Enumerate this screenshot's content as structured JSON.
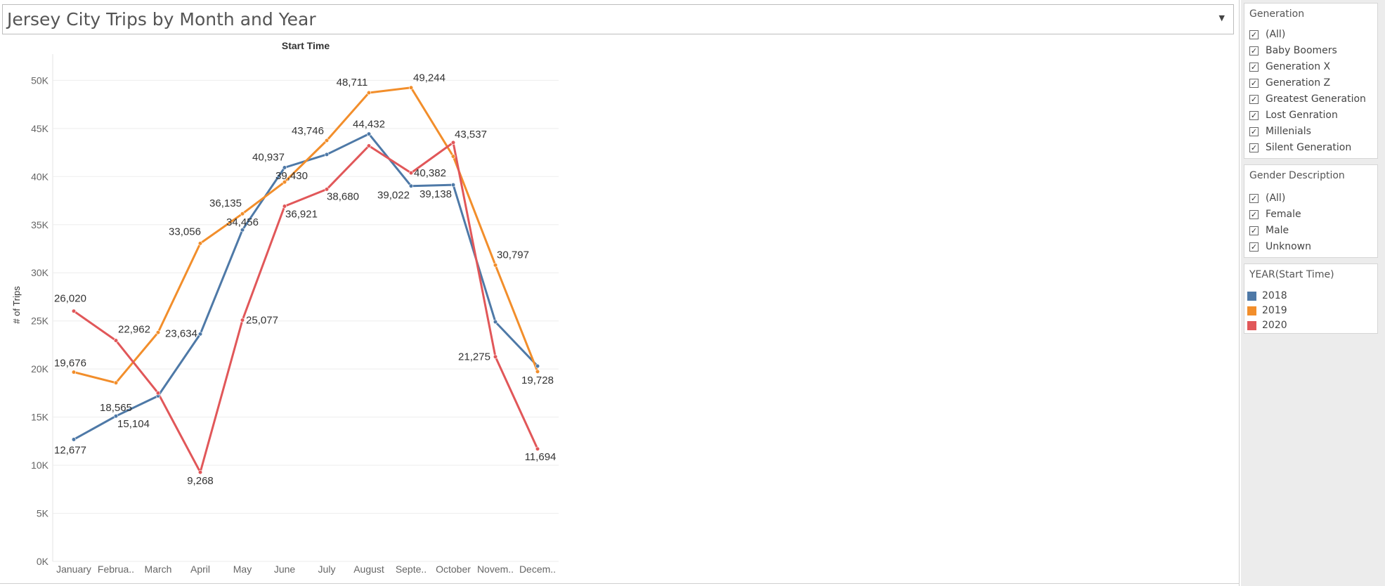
{
  "dashboard": {
    "title": "Jersey City Trips by Month and Year",
    "title_dropdown_icon": "caret-down-icon"
  },
  "filters": {
    "generation": {
      "title": "Generation",
      "items": [
        {
          "label": "(All)",
          "checked": true
        },
        {
          "label": "Baby Boomers",
          "checked": true
        },
        {
          "label": "Generation X",
          "checked": true
        },
        {
          "label": "Generation Z",
          "checked": true
        },
        {
          "label": "Greatest Generation",
          "checked": true
        },
        {
          "label": "Lost Genration",
          "checked": true
        },
        {
          "label": "Millenials",
          "checked": true
        },
        {
          "label": "Silent Generation",
          "checked": true
        }
      ]
    },
    "gender": {
      "title": "Gender Description",
      "items": [
        {
          "label": "(All)",
          "checked": true
        },
        {
          "label": "Female",
          "checked": true
        },
        {
          "label": "Male",
          "checked": true
        },
        {
          "label": "Unknown",
          "checked": true
        }
      ]
    }
  },
  "legend": {
    "title": "YEAR(Start Time)",
    "items": [
      {
        "label": "2018",
        "color": "#4e79a7"
      },
      {
        "label": "2019",
        "color": "#f28e2b"
      },
      {
        "label": "2020",
        "color": "#e15759"
      }
    ]
  },
  "chart_data": {
    "type": "line",
    "title": "Start Time",
    "xlabel": "",
    "ylabel": "# of Trips",
    "ylim": [
      0,
      50000
    ],
    "yticks": [
      0,
      5000,
      10000,
      15000,
      20000,
      25000,
      30000,
      35000,
      40000,
      45000,
      50000
    ],
    "ytick_labels": [
      "0K",
      "5K",
      "10K",
      "15K",
      "20K",
      "25K",
      "30K",
      "35K",
      "40K",
      "45K",
      "50K"
    ],
    "grid": true,
    "categories": [
      "January",
      "Februa..",
      "March",
      "April",
      "May",
      "June",
      "July",
      "August",
      "Septe..",
      "October",
      "Novem..",
      "Decem.."
    ],
    "series": [
      {
        "name": "2018",
        "color": "#4e79a7",
        "values": [
          12677,
          15104,
          17200,
          23634,
          34456,
          40937,
          42300,
          44432,
          39022,
          39138,
          24900,
          20300
        ],
        "labels": [
          "12,677",
          "15,104",
          null,
          "23,634",
          "34,456",
          "40,937",
          null,
          "44,432",
          "39,022",
          "39,138",
          null,
          null
        ]
      },
      {
        "name": "2019",
        "color": "#f28e2b",
        "values": [
          19676,
          18565,
          23800,
          33056,
          36135,
          39430,
          43746,
          48711,
          49244,
          42100,
          30797,
          19728
        ],
        "labels": [
          "19,676",
          "18,565",
          null,
          "33,056",
          "36,135",
          "39,430",
          "43,746",
          "48,711",
          "49,244",
          null,
          "30,797",
          "19,728"
        ]
      },
      {
        "name": "2020",
        "color": "#e15759",
        "values": [
          26020,
          22962,
          17500,
          9268,
          25077,
          36921,
          38680,
          43200,
          40382,
          43537,
          21275,
          11694
        ],
        "labels": [
          "26,020",
          "22,962",
          null,
          "9,268",
          "25,077",
          "36,921",
          "38,680",
          null,
          "40,382",
          "43,537",
          "21,275",
          "11,694"
        ]
      }
    ]
  }
}
